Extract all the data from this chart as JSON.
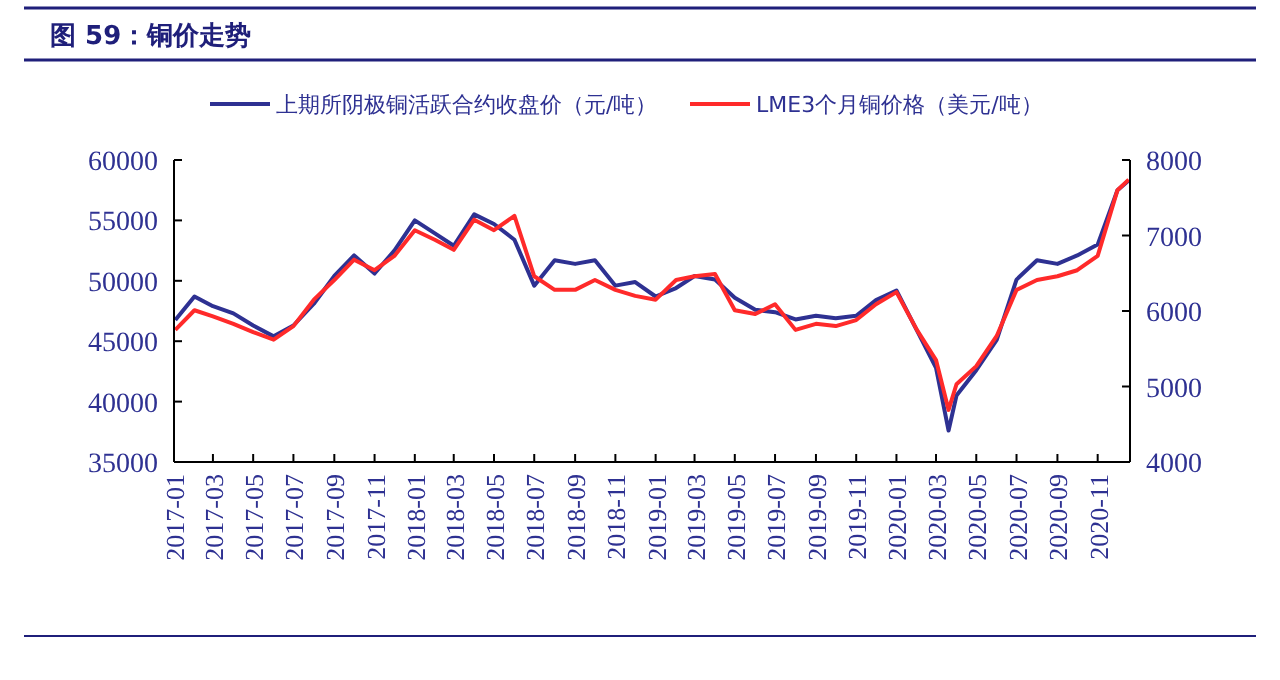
{
  "chart_data": {
    "type": "line",
    "title": "图 59：铜价走势",
    "x": [
      "2017-01-03",
      "2017-02-01",
      "2017-03-01",
      "2017-04-01",
      "2017-05-01",
      "2017-06-01",
      "2017-07-01",
      "2017-08-01",
      "2017-09-01",
      "2017-10-01",
      "2017-11-01",
      "2017-12-01",
      "2018-01-01",
      "2018-02-01",
      "2018-03-01",
      "2018-04-01",
      "2018-05-01",
      "2018-06-01",
      "2018-07-01",
      "2018-08-01",
      "2018-09-01",
      "2018-10-01",
      "2018-11-01",
      "2018-12-01",
      "2019-01-01",
      "2019-02-01",
      "2019-03-01",
      "2019-04-01",
      "2019-05-01",
      "2019-06-01",
      "2019-07-01",
      "2019-08-01",
      "2019-09-01",
      "2019-10-01",
      "2019-11-01",
      "2019-12-01",
      "2020-01-01",
      "2020-02-01",
      "2020-03-01",
      "2020-03-20",
      "2020-04-01",
      "2020-05-01",
      "2020-06-01",
      "2020-07-01",
      "2020-08-01",
      "2020-09-01",
      "2020-10-01",
      "2020-11-01",
      "2020-12-01",
      "2020-12-18"
    ],
    "series": [
      {
        "name": "上期所阴极铜活跃合约收盘价（元/吨）",
        "color": "#2e3192",
        "values": [
          46750,
          48700,
          47900,
          47300,
          46300,
          45400,
          46300,
          48100,
          50400,
          52100,
          50600,
          52500,
          55000,
          53900,
          52900,
          55500,
          54700,
          53400,
          49600,
          51700,
          51400,
          51700,
          49600,
          49900,
          48700,
          49400,
          50400,
          50100,
          48600,
          47600,
          47400,
          46800,
          47100,
          46900,
          47100,
          48400,
          49200,
          45900,
          42800,
          37600,
          40500,
          42600,
          45100,
          50100,
          51700,
          51400,
          52100,
          53000,
          57500,
          58300
        ]
      },
      {
        "name": "LME3个月铜价格（美元/吨）",
        "color": "#ff2a2a",
        "axis": "y2",
        "values": [
          5750,
          6010,
          5930,
          5830,
          5720,
          5620,
          5800,
          6150,
          6410,
          6680,
          6540,
          6730,
          7070,
          6940,
          6810,
          7210,
          7070,
          7260,
          6460,
          6280,
          6280,
          6410,
          6280,
          6200,
          6150,
          6410,
          6460,
          6490,
          6010,
          5960,
          6090,
          5750,
          5830,
          5800,
          5880,
          6090,
          6250,
          5750,
          5350,
          4690,
          5030,
          5270,
          5670,
          6280,
          6410,
          6460,
          6540,
          6730,
          7600,
          7740
        ]
      }
    ],
    "xlim": [
      "2017-01-01",
      "2020-12-20"
    ],
    "xticks": [
      {
        "value": "2017-01",
        "label": "2017-01"
      },
      {
        "value": "2017-03",
        "label": "2017-03"
      },
      {
        "value": "2017-05",
        "label": "2017-05"
      },
      {
        "value": "2017-07",
        "label": "2017-07"
      },
      {
        "value": "2017-09",
        "label": "2017-09"
      },
      {
        "value": "2017-11",
        "label": "2017-11"
      },
      {
        "value": "2018-01",
        "label": "2018-01"
      },
      {
        "value": "2018-03",
        "label": "2018-03"
      },
      {
        "value": "2018-05",
        "label": "2018-05"
      },
      {
        "value": "2018-07",
        "label": "2018-07"
      },
      {
        "value": "2018-09",
        "label": "2018-09"
      },
      {
        "value": "2018-11",
        "label": "2018-11"
      },
      {
        "value": "2019-01",
        "label": "2019-01"
      },
      {
        "value": "2019-03",
        "label": "2019-03"
      },
      {
        "value": "2019-05",
        "label": "2019-05"
      },
      {
        "value": "2019-07",
        "label": "2019-07"
      },
      {
        "value": "2019-09",
        "label": "2019-09"
      },
      {
        "value": "2019-11",
        "label": "2019-11"
      },
      {
        "value": "2020-01",
        "label": "2020-01"
      },
      {
        "value": "2020-03",
        "label": "2020-03"
      },
      {
        "value": "2020-05",
        "label": "2020-05"
      },
      {
        "value": "2020-07",
        "label": "2020-07"
      },
      {
        "value": "2020-09",
        "label": "2020-09"
      },
      {
        "value": "2020-11",
        "label": "2020-11"
      }
    ],
    "ylim": [
      35000,
      60000
    ],
    "yticks": [
      35000,
      40000,
      45000,
      50000,
      55000,
      60000
    ],
    "y2lim": [
      4000,
      8000
    ],
    "y2ticks": [
      4000,
      5000,
      6000,
      7000,
      8000
    ],
    "legend": "top",
    "grid": false,
    "line_style": "solid"
  }
}
